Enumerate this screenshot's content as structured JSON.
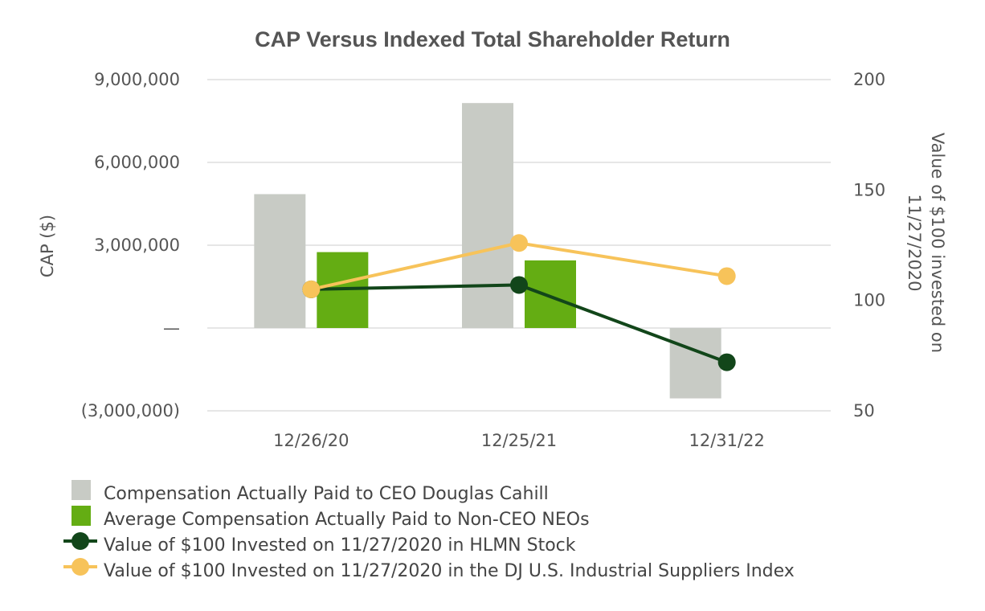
{
  "chart_data": {
    "type": "bar",
    "title": "CAP Versus Indexed Total Shareholder Return",
    "categories": [
      "12/26/20",
      "12/25/21",
      "12/31/22"
    ],
    "left_axis": {
      "label": "CAP ($)",
      "range": [
        -3000000,
        9000000
      ],
      "ticks": [
        9000000,
        6000000,
        3000000,
        0,
        -3000000
      ],
      "tick_labels": [
        "9,000,000",
        "6,000,000",
        "3,000,000",
        "—",
        "(3,000,000)"
      ]
    },
    "right_axis": {
      "label_line1": "Value of $100 invested on",
      "label_line2": "11/27/2020",
      "range": [
        50,
        200
      ],
      "ticks": [
        200,
        150,
        100,
        50
      ],
      "tick_labels": [
        "200",
        "150",
        "100",
        "50"
      ]
    },
    "bar_series": [
      {
        "name": "Compensation Actually Paid to CEO Douglas Cahill",
        "color": "#c8cbc5",
        "values": [
          4850000,
          8150000,
          -2550000
        ]
      },
      {
        "name": "Average Compensation Actually Paid to Non-CEO NEOs",
        "color": "#64ad13",
        "values": [
          2750000,
          2450000,
          null
        ]
      }
    ],
    "line_series": [
      {
        "name": "Value of $100 Invested on 11/27/2020 in HLMN Stock",
        "color": "#12461a",
        "values": [
          105,
          107,
          72
        ]
      },
      {
        "name": "Value of $100 Invested on 11/27/2020 in the DJ U.S. Industrial Suppliers Index",
        "color": "#f7c35a",
        "values": [
          105,
          126,
          111
        ]
      }
    ],
    "legend_position": "bottom-left",
    "grid": true
  }
}
